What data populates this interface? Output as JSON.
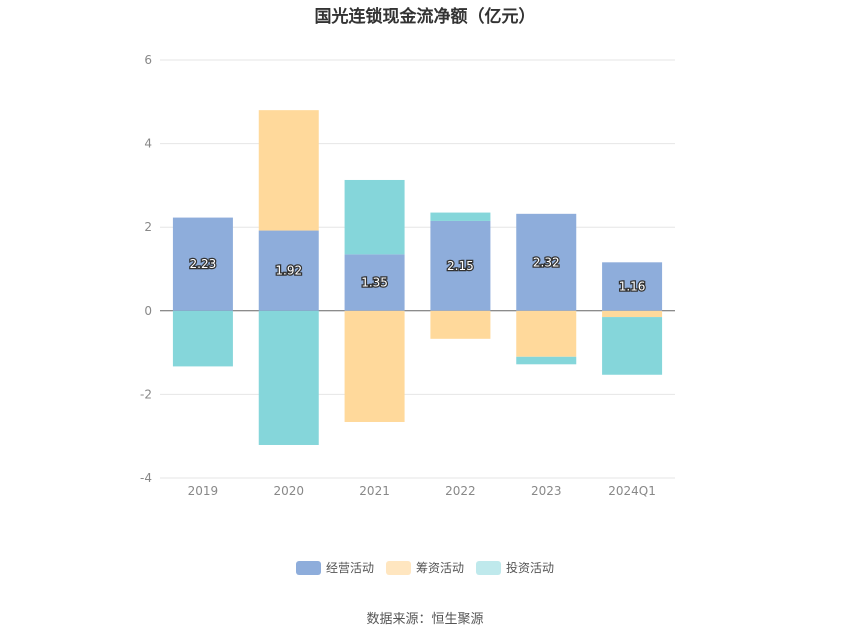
{
  "title": "国光连锁现金流净额（亿元）",
  "source": "数据来源：恒生聚源",
  "colors": {
    "operating": "#8eaddb",
    "financing": "#ffd99b",
    "investing": "#85d6da",
    "legend_operating": "#8eaddb",
    "legend_financing": "#ffe6c0",
    "legend_investing": "#bfe9ec"
  },
  "chart_data": {
    "type": "bar",
    "stacked": true,
    "categories": [
      "2019",
      "2020",
      "2021",
      "2022",
      "2023",
      "2024Q1"
    ],
    "ylim": [
      -4,
      6
    ],
    "yticks": [
      "6",
      "4",
      "2",
      "0",
      "-2",
      "-4"
    ],
    "grid": true,
    "legend_position": "bottom",
    "series": [
      {
        "name": "经营活动",
        "color_key": "operating",
        "values": [
          2.23,
          1.92,
          1.35,
          2.15,
          2.32,
          1.16
        ],
        "labels": [
          "2.23",
          "1.92",
          "1.35",
          "2.15",
          "2.32",
          "1.16"
        ]
      },
      {
        "name": "筹资活动",
        "color_key": "financing",
        "values": [
          0,
          2.88,
          -2.66,
          -0.67,
          -1.1,
          -0.15
        ]
      },
      {
        "name": "投资活动",
        "color_key": "investing",
        "values": [
          -1.33,
          -3.21,
          1.78,
          0.2,
          -0.18,
          -1.38
        ]
      }
    ]
  }
}
